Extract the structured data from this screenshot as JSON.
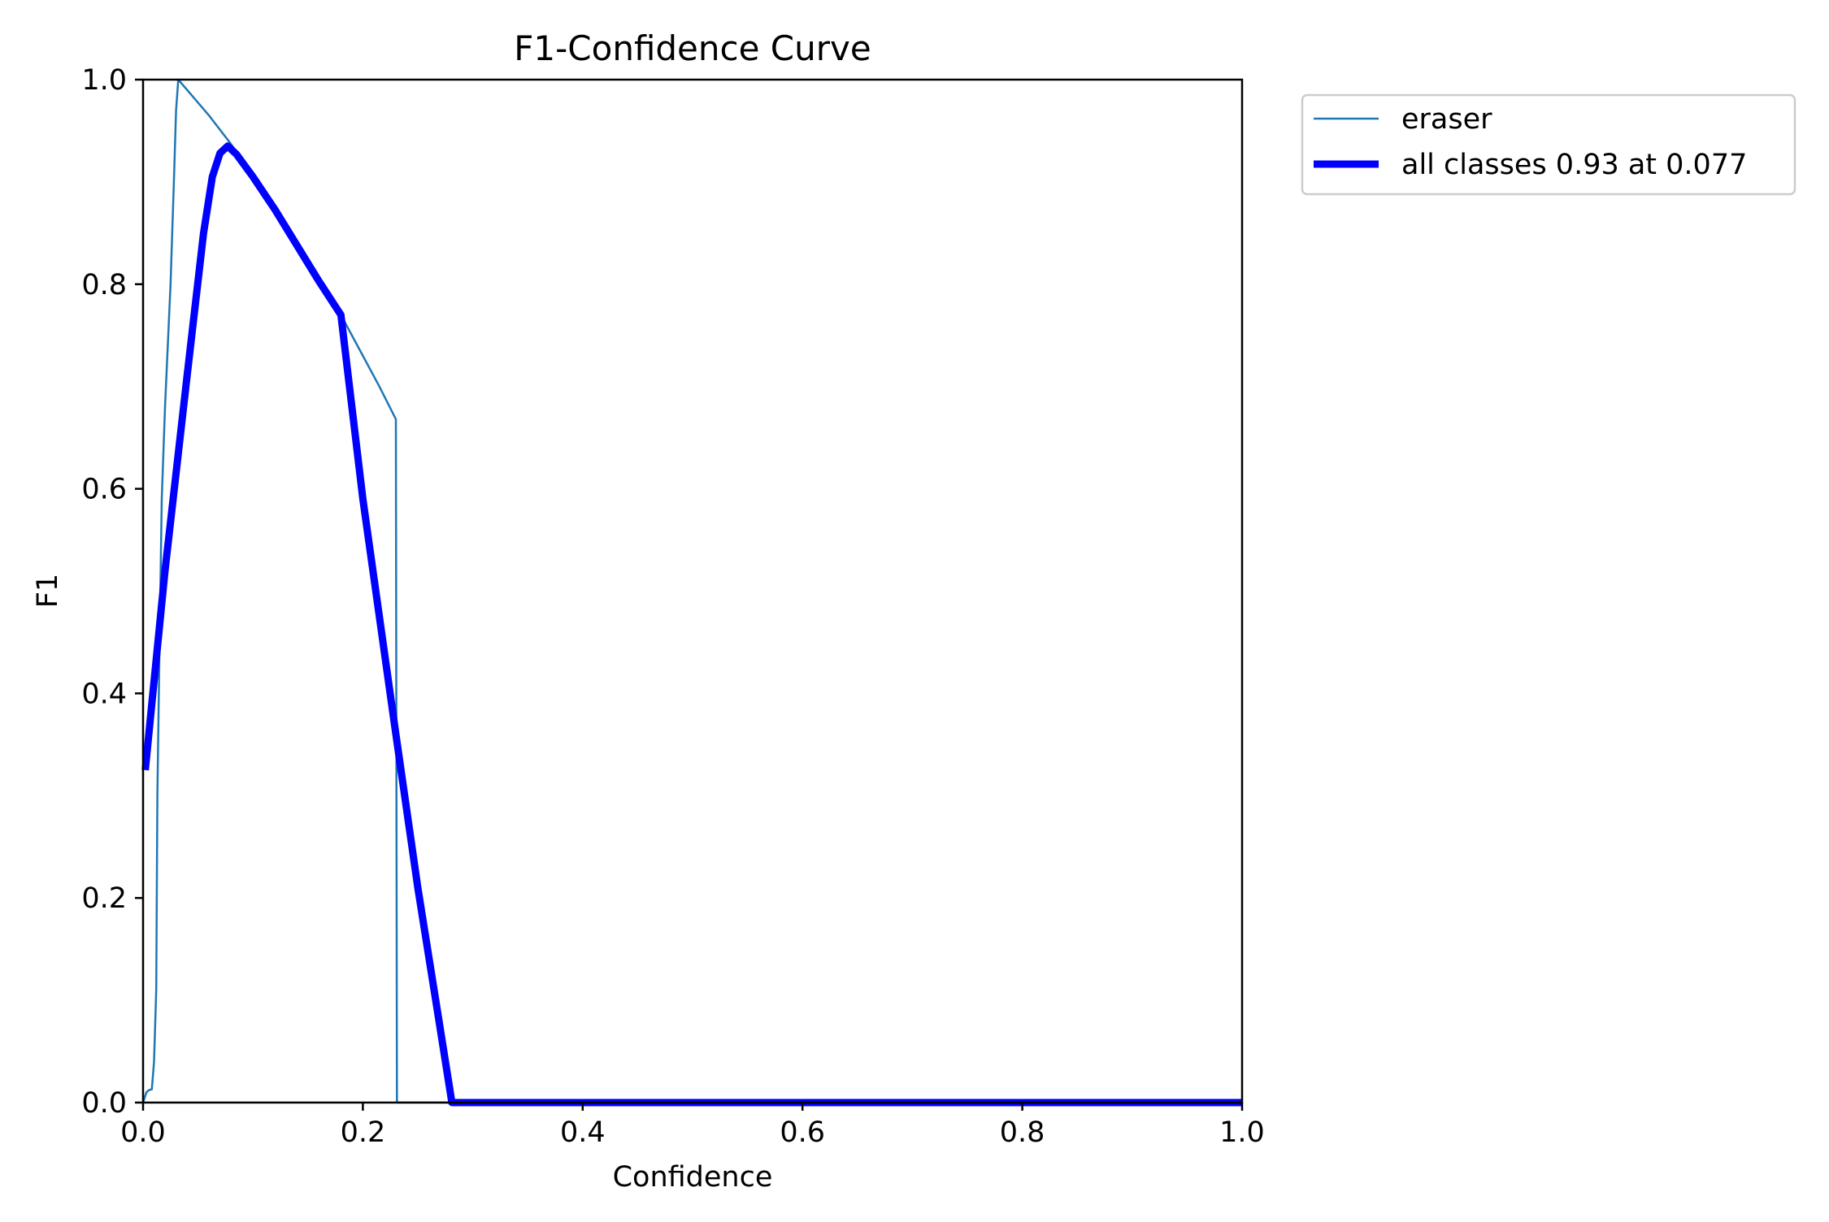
{
  "chart_data": {
    "type": "line",
    "title": "F1-Confidence Curve",
    "xlabel": "Confidence",
    "ylabel": "F1",
    "xlim": [
      0,
      1
    ],
    "ylim": [
      0,
      1
    ],
    "x_ticks": [
      "0.0",
      "0.2",
      "0.4",
      "0.6",
      "0.8",
      "1.0"
    ],
    "y_ticks": [
      "0.0",
      "0.2",
      "0.4",
      "0.6",
      "0.8",
      "1.0"
    ],
    "grid": false,
    "legend_position": "outside-top-right",
    "series": [
      {
        "name": "eraser",
        "color": "#1f77b4",
        "points": [
          [
            0.0,
            0.0
          ],
          [
            0.003,
            0.01
          ],
          [
            0.005,
            0.012
          ],
          [
            0.008,
            0.013
          ],
          [
            0.01,
            0.04
          ],
          [
            0.012,
            0.11
          ],
          [
            0.013,
            0.3
          ],
          [
            0.015,
            0.45
          ],
          [
            0.017,
            0.59
          ],
          [
            0.02,
            0.68
          ],
          [
            0.025,
            0.8
          ],
          [
            0.028,
            0.9
          ],
          [
            0.03,
            0.97
          ],
          [
            0.032,
            1.0
          ],
          [
            0.04,
            0.99
          ],
          [
            0.06,
            0.965
          ],
          [
            0.08,
            0.937
          ],
          [
            0.1,
            0.906
          ],
          [
            0.12,
            0.873
          ],
          [
            0.14,
            0.838
          ],
          [
            0.16,
            0.8
          ],
          [
            0.18,
            0.77
          ],
          [
            0.2,
            0.73
          ],
          [
            0.215,
            0.7
          ],
          [
            0.23,
            0.668
          ],
          [
            0.231,
            0.0
          ],
          [
            1.0,
            0.0
          ]
        ]
      },
      {
        "name": "all classes 0.93 at 0.077",
        "color": "#0000ff",
        "points": [
          [
            0.002,
            0.325
          ],
          [
            0.02,
            0.52
          ],
          [
            0.04,
            0.71
          ],
          [
            0.055,
            0.85
          ],
          [
            0.063,
            0.905
          ],
          [
            0.07,
            0.928
          ],
          [
            0.077,
            0.935
          ],
          [
            0.085,
            0.927
          ],
          [
            0.1,
            0.905
          ],
          [
            0.12,
            0.873
          ],
          [
            0.14,
            0.838
          ],
          [
            0.16,
            0.803
          ],
          [
            0.18,
            0.77
          ],
          [
            0.2,
            0.59
          ],
          [
            0.23,
            0.36
          ],
          [
            0.25,
            0.21
          ],
          [
            0.27,
            0.075
          ],
          [
            0.281,
            0.0
          ],
          [
            1.0,
            0.0
          ]
        ]
      }
    ]
  }
}
